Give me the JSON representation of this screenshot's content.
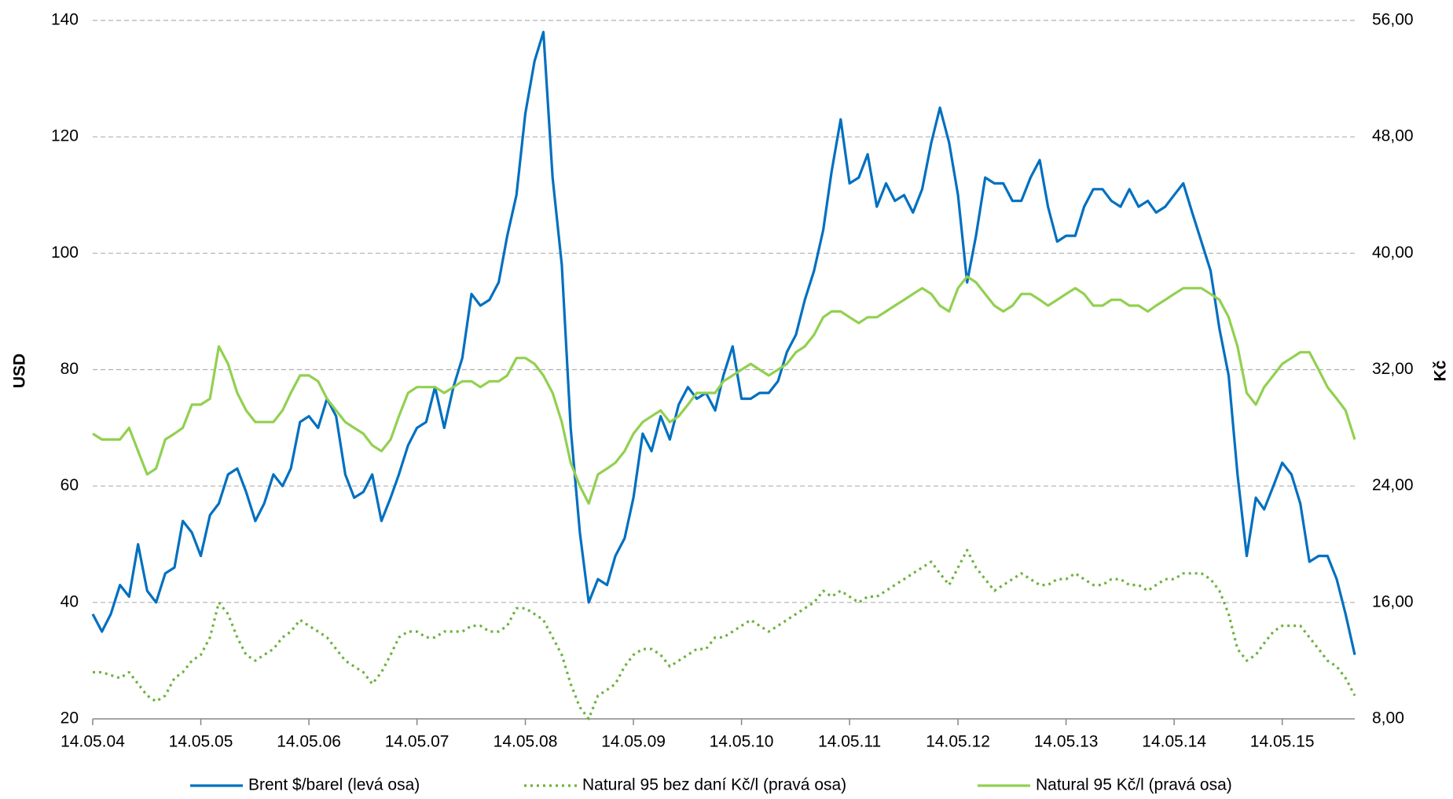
{
  "chart_data": {
    "type": "line",
    "x": [
      "14.05.04",
      "14.06.04",
      "14.07.04",
      "14.08.04",
      "14.09.04",
      "14.10.04",
      "14.11.04",
      "14.12.04",
      "14.01.05",
      "14.02.05",
      "14.03.05",
      "14.04.05",
      "14.05.05",
      "14.06.05",
      "14.07.05",
      "14.08.05",
      "14.09.05",
      "14.10.05",
      "14.11.05",
      "14.12.05",
      "14.01.06",
      "14.02.06",
      "14.03.06",
      "14.04.06",
      "14.05.06",
      "14.06.06",
      "14.07.06",
      "14.08.06",
      "14.09.06",
      "14.10.06",
      "14.11.06",
      "14.12.06",
      "14.01.07",
      "14.02.07",
      "14.03.07",
      "14.04.07",
      "14.05.07",
      "14.06.07",
      "14.07.07",
      "14.08.07",
      "14.09.07",
      "14.10.07",
      "14.11.07",
      "14.12.07",
      "14.01.08",
      "14.02.08",
      "14.03.08",
      "14.04.08",
      "14.05.08",
      "14.06.08",
      "14.07.08",
      "14.08.08",
      "14.09.08",
      "14.10.08",
      "14.11.08",
      "14.12.08",
      "14.01.09",
      "14.02.09",
      "14.03.09",
      "14.04.09",
      "14.05.09",
      "14.06.09",
      "14.07.09",
      "14.08.09",
      "14.09.09",
      "14.10.09",
      "14.11.09",
      "14.12.09",
      "14.01.10",
      "14.02.10",
      "14.03.10",
      "14.04.10",
      "14.05.10",
      "14.06.10",
      "14.07.10",
      "14.08.10",
      "14.09.10",
      "14.10.10",
      "14.11.10",
      "14.12.10",
      "14.01.11",
      "14.02.11",
      "14.03.11",
      "14.04.11",
      "14.05.11",
      "14.06.11",
      "14.07.11",
      "14.08.11",
      "14.09.11",
      "14.10.11",
      "14.11.11",
      "14.12.11",
      "14.01.12",
      "14.02.12",
      "14.03.12",
      "14.04.12",
      "14.05.12",
      "14.06.12",
      "14.07.12",
      "14.08.12",
      "14.09.12",
      "14.10.12",
      "14.11.12",
      "14.12.12",
      "14.01.13",
      "14.02.13",
      "14.03.13",
      "14.04.13",
      "14.05.13",
      "14.06.13",
      "14.07.13",
      "14.08.13",
      "14.09.13",
      "14.10.13",
      "14.11.13",
      "14.12.13",
      "14.01.14",
      "14.02.14",
      "14.03.14",
      "14.04.14",
      "14.05.14",
      "14.06.14",
      "14.07.14",
      "14.08.14",
      "14.09.14",
      "14.10.14",
      "14.11.14",
      "14.12.14",
      "14.01.15",
      "14.02.15",
      "14.03.15",
      "14.04.15",
      "14.05.15",
      "14.06.15",
      "14.07.15",
      "14.08.15",
      "14.09.15",
      "14.10.15",
      "14.11.15",
      "14.12.15",
      "14.01.16"
    ],
    "series": [
      {
        "name": "Brent $/barel (levá osa)",
        "color": "#0070c0",
        "style": "solid",
        "axis": "y",
        "values": [
          38,
          35,
          38,
          43,
          41,
          50,
          42,
          40,
          45,
          46,
          54,
          52,
          48,
          55,
          57,
          62,
          63,
          59,
          54,
          57,
          62,
          60,
          63,
          71,
          72,
          70,
          75,
          72,
          62,
          58,
          59,
          62,
          54,
          58,
          62,
          67,
          70,
          71,
          77,
          70,
          77,
          82,
          93,
          91,
          92,
          95,
          103,
          110,
          124,
          133,
          138,
          113,
          98,
          70,
          52,
          40,
          44,
          43,
          48,
          51,
          58,
          69,
          66,
          72,
          68,
          74,
          77,
          75,
          76,
          73,
          79,
          84,
          75,
          75,
          76,
          76,
          78,
          83,
          86,
          92,
          97,
          104,
          114,
          123,
          112,
          113,
          117,
          108,
          112,
          109,
          110,
          107,
          111,
          119,
          125,
          119,
          110,
          95,
          103,
          113,
          112,
          112,
          109,
          109,
          113,
          116,
          108,
          102,
          103,
          103,
          108,
          111,
          111,
          109,
          108,
          111,
          108,
          109,
          107,
          108,
          110,
          112,
          107,
          102,
          97,
          87,
          79,
          62,
          48,
          58,
          56,
          60,
          64,
          62,
          57,
          47,
          48,
          48,
          44,
          38,
          31
        ]
      },
      {
        "name": "Natural 95 bez daní Kč/l (pravá osa)",
        "color": "#6db33f",
        "style": "dotted",
        "axis": "y2",
        "values": [
          11.2,
          11.2,
          11.0,
          10.8,
          11.2,
          10.4,
          9.6,
          9.2,
          9.6,
          10.8,
          11.2,
          12.0,
          12.4,
          13.6,
          16.0,
          15.2,
          13.6,
          12.4,
          12.0,
          12.4,
          12.8,
          13.6,
          14.0,
          14.8,
          14.4,
          14.0,
          13.6,
          12.8,
          12.0,
          11.6,
          11.2,
          10.4,
          11.2,
          12.4,
          13.6,
          14.0,
          14.0,
          13.6,
          13.6,
          14.0,
          14.0,
          14.0,
          14.4,
          14.4,
          14.0,
          14.0,
          14.4,
          15.6,
          15.6,
          15.2,
          14.8,
          13.6,
          12.4,
          10.4,
          8.8,
          8.0,
          9.6,
          10.0,
          10.4,
          11.6,
          12.4,
          12.8,
          12.8,
          12.4,
          11.6,
          12.0,
          12.4,
          12.8,
          12.8,
          13.6,
          13.6,
          14.0,
          14.4,
          14.8,
          14.4,
          14.0,
          14.4,
          14.8,
          15.2,
          15.6,
          16.0,
          16.8,
          16.4,
          16.8,
          16.4,
          16.0,
          16.4,
          16.4,
          16.8,
          17.2,
          17.6,
          18.0,
          18.4,
          18.8,
          18.0,
          17.2,
          18.4,
          19.6,
          18.4,
          17.6,
          16.8,
          17.2,
          17.6,
          18.0,
          17.6,
          17.2,
          17.2,
          17.6,
          17.6,
          18.0,
          17.6,
          17.2,
          17.2,
          17.6,
          17.6,
          17.2,
          17.2,
          16.8,
          17.2,
          17.6,
          17.6,
          18.0,
          18.0,
          18.0,
          17.6,
          16.8,
          15.2,
          12.8,
          12.0,
          12.4,
          13.2,
          14.0,
          14.4,
          14.4,
          14.4,
          13.6,
          12.8,
          12.0,
          11.6,
          10.8,
          9.6
        ]
      },
      {
        "name": "Natural 95 Kč/l (pravá osa)",
        "color": "#92d050",
        "style": "solid",
        "axis": "y2",
        "values": [
          27.6,
          27.2,
          27.2,
          27.2,
          28.0,
          26.4,
          24.8,
          25.2,
          27.2,
          27.6,
          28.0,
          29.6,
          29.6,
          30.0,
          33.6,
          32.4,
          30.4,
          29.2,
          28.4,
          28.4,
          28.4,
          29.2,
          30.4,
          31.6,
          31.6,
          31.2,
          30.0,
          29.2,
          28.4,
          28.0,
          27.6,
          26.8,
          26.4,
          27.2,
          28.8,
          30.4,
          30.8,
          30.8,
          30.8,
          30.4,
          30.8,
          31.2,
          31.2,
          30.8,
          31.2,
          31.2,
          31.6,
          32.8,
          32.8,
          32.4,
          31.6,
          30.4,
          28.4,
          25.6,
          24.0,
          22.8,
          24.8,
          25.2,
          25.6,
          26.4,
          27.6,
          28.4,
          28.8,
          29.2,
          28.4,
          28.8,
          29.6,
          30.4,
          30.4,
          30.4,
          31.2,
          31.6,
          32.0,
          32.4,
          32.0,
          31.6,
          32.0,
          32.4,
          33.2,
          33.6,
          34.4,
          35.6,
          36.0,
          36.0,
          35.6,
          35.2,
          35.6,
          35.6,
          36.0,
          36.4,
          36.8,
          37.2,
          37.6,
          37.2,
          36.4,
          36.0,
          37.6,
          38.4,
          38.0,
          37.2,
          36.4,
          36.0,
          36.4,
          37.2,
          37.2,
          36.8,
          36.4,
          36.8,
          37.2,
          37.6,
          37.2,
          36.4,
          36.4,
          36.8,
          36.8,
          36.4,
          36.4,
          36.0,
          36.4,
          36.8,
          37.2,
          37.6,
          37.6,
          37.6,
          37.2,
          36.8,
          35.6,
          33.6,
          30.4,
          29.6,
          30.8,
          31.6,
          32.4,
          32.8,
          33.2,
          33.2,
          32.0,
          30.8,
          30.0,
          29.2,
          27.2
        ]
      }
    ],
    "xlim": [
      "14.05.04",
      "14.01.16"
    ],
    "xticks": [
      "14.05.04",
      "14.05.05",
      "14.05.06",
      "14.05.07",
      "14.05.08",
      "14.05.09",
      "14.05.10",
      "14.05.11",
      "14.05.12",
      "14.05.13",
      "14.05.14",
      "14.05.15"
    ],
    "ylabel": "USD",
    "ylim": [
      20,
      140
    ],
    "yticks": [
      20,
      40,
      60,
      80,
      100,
      120,
      140
    ],
    "y2label": "Kč",
    "y2lim": [
      8,
      56
    ],
    "y2ticks": [
      {
        "value": 8,
        "label": "8,00"
      },
      {
        "value": 16,
        "label": "16,00"
      },
      {
        "value": 24,
        "label": "24,00"
      },
      {
        "value": 32,
        "label": "32,00"
      },
      {
        "value": 40,
        "label": "40,00"
      },
      {
        "value": 48,
        "label": "48,00"
      },
      {
        "value": 56,
        "label": "56,00"
      }
    ],
    "grid": true,
    "legend": "bottom"
  }
}
